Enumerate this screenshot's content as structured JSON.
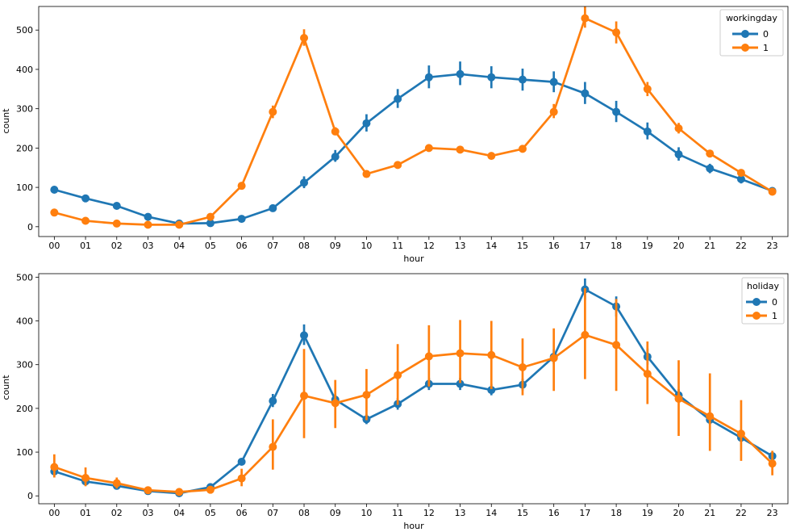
{
  "chart_data": [
    {
      "type": "line",
      "markers": true,
      "xlabel": "hour",
      "ylabel": "count",
      "ylim": [
        -25,
        560
      ],
      "yticks": [
        0,
        100,
        200,
        300,
        400,
        500
      ],
      "categories": [
        "00",
        "01",
        "02",
        "03",
        "04",
        "05",
        "06",
        "07",
        "08",
        "09",
        "10",
        "11",
        "12",
        "13",
        "14",
        "15",
        "16",
        "17",
        "18",
        "19",
        "20",
        "21",
        "22",
        "23"
      ],
      "legend": {
        "title": "workingday",
        "placement": "top-right"
      },
      "series": [
        {
          "name": "0",
          "color": "#1f77b4",
          "values": [
            94,
            72,
            53,
            25,
            8,
            9,
            20,
            47,
            112,
            178,
            263,
            325,
            380,
            388,
            380,
            374,
            368,
            339,
            292,
            242,
            184,
            148,
            121,
            91
          ],
          "ci_low": [
            89,
            67,
            48,
            21,
            6,
            7,
            17,
            42,
            98,
            165,
            242,
            302,
            352,
            360,
            352,
            346,
            342,
            312,
            266,
            222,
            168,
            136,
            110,
            84
          ],
          "ci_high": [
            99,
            77,
            58,
            29,
            10,
            11,
            23,
            52,
            128,
            195,
            286,
            350,
            410,
            420,
            408,
            402,
            395,
            368,
            320,
            265,
            202,
            160,
            131,
            98
          ]
        },
        {
          "name": "1",
          "color": "#ff7f0e",
          "values": [
            36,
            15,
            8,
            5,
            5,
            25,
            104,
            292,
            480,
            242,
            134,
            157,
            200,
            196,
            180,
            198,
            292,
            530,
            494,
            350,
            250,
            186,
            137,
            89
          ],
          "ci_low": [
            33,
            13,
            6,
            4,
            4,
            22,
            99,
            276,
            460,
            233,
            128,
            150,
            192,
            188,
            172,
            190,
            276,
            506,
            466,
            332,
            237,
            178,
            130,
            84
          ],
          "ci_high": [
            39,
            17,
            10,
            6,
            6,
            28,
            109,
            308,
            502,
            253,
            140,
            164,
            207,
            204,
            188,
            208,
            312,
            560,
            522,
            368,
            264,
            194,
            144,
            94
          ]
        }
      ]
    },
    {
      "type": "line",
      "markers": true,
      "xlabel": "hour",
      "ylabel": "count",
      "ylim": [
        -18,
        508
      ],
      "yticks": [
        0,
        100,
        200,
        300,
        400,
        500
      ],
      "categories": [
        "00",
        "01",
        "02",
        "03",
        "04",
        "05",
        "06",
        "07",
        "08",
        "09",
        "10",
        "11",
        "12",
        "13",
        "14",
        "15",
        "16",
        "17",
        "18",
        "19",
        "20",
        "21",
        "22",
        "23"
      ],
      "legend": {
        "title": "holiday",
        "placement": "top-right"
      },
      "series": [
        {
          "name": "0",
          "color": "#1f77b4",
          "values": [
            56,
            33,
            23,
            11,
            6,
            20,
            78,
            217,
            367,
            220,
            175,
            210,
            256,
            256,
            242,
            254,
            318,
            472,
            433,
            318,
            230,
            174,
            133,
            91
          ],
          "ci_low": [
            52,
            30,
            20,
            9,
            5,
            17,
            73,
            203,
            345,
            205,
            164,
            197,
            242,
            242,
            230,
            241,
            302,
            448,
            410,
            300,
            216,
            163,
            125,
            85
          ],
          "ci_high": [
            61,
            37,
            26,
            13,
            8,
            23,
            84,
            233,
            392,
            233,
            186,
            224,
            270,
            270,
            256,
            268,
            335,
            497,
            456,
            337,
            244,
            185,
            141,
            97
          ]
        },
        {
          "name": "1",
          "color": "#ff7f0e",
          "values": [
            66,
            41,
            29,
            13,
            9,
            14,
            40,
            112,
            229,
            212,
            231,
            276,
            319,
            326,
            322,
            294,
            315,
            368,
            345,
            279,
            222,
            182,
            142,
            74
          ],
          "ci_low": [
            42,
            22,
            17,
            8,
            5,
            7,
            22,
            60,
            132,
            155,
            173,
            208,
            250,
            258,
            244,
            230,
            240,
            267,
            240,
            210,
            137,
            103,
            80,
            47
          ],
          "ci_high": [
            95,
            65,
            42,
            18,
            13,
            22,
            62,
            175,
            336,
            265,
            290,
            347,
            390,
            402,
            400,
            360,
            383,
            475,
            450,
            353,
            310,
            280,
            219,
            103
          ]
        }
      ]
    }
  ]
}
